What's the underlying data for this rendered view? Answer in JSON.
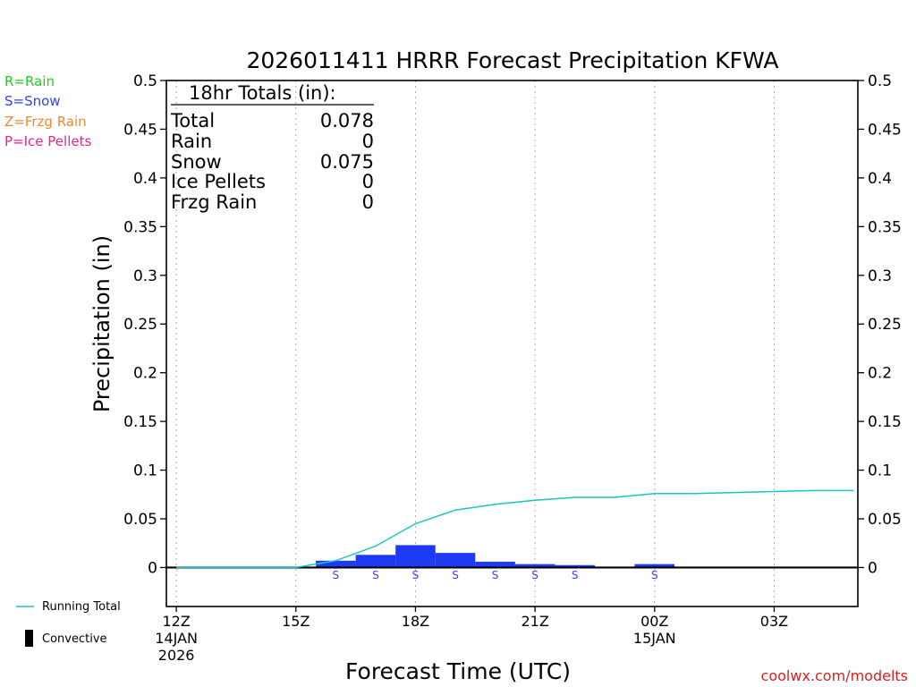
{
  "chart_data": {
    "type": "bar",
    "title": "2026011411 HRRR Forecast Precipitation KFWA",
    "ylabel": "Precipitation (in)",
    "xlabel": "Forecast Time (UTC)",
    "ylim": [
      -0.04,
      0.5
    ],
    "y_ticks": [
      {
        "value": 0,
        "label": "0"
      },
      {
        "value": 0.05,
        "label": "0.05"
      },
      {
        "value": 0.1,
        "label": "0.1"
      },
      {
        "value": 0.15,
        "label": "0.15"
      },
      {
        "value": 0.2,
        "label": "0.2"
      },
      {
        "value": 0.25,
        "label": "0.25"
      },
      {
        "value": 0.3,
        "label": "0.3"
      },
      {
        "value": 0.35,
        "label": "0.35"
      },
      {
        "value": 0.4,
        "label": "0.4"
      },
      {
        "value": 0.45,
        "label": "0.45"
      },
      {
        "value": 0.5,
        "label": "0.5"
      }
    ],
    "xlim_hours": [
      11.75,
      29.1
    ],
    "x_ticks": [
      {
        "hour": 12,
        "lines": [
          "12Z",
          "14JAN",
          "2026"
        ]
      },
      {
        "hour": 15,
        "lines": [
          "15Z"
        ]
      },
      {
        "hour": 18,
        "lines": [
          "18Z"
        ]
      },
      {
        "hour": 21,
        "lines": [
          "21Z"
        ]
      },
      {
        "hour": 24,
        "lines": [
          "00Z",
          "15JAN"
        ]
      },
      {
        "hour": 27,
        "lines": [
          "03Z"
        ]
      }
    ],
    "bars": [
      {
        "hour": 16,
        "value": 0.007,
        "ptype": "S"
      },
      {
        "hour": 17,
        "value": 0.013,
        "ptype": "S"
      },
      {
        "hour": 18,
        "value": 0.023,
        "ptype": "S"
      },
      {
        "hour": 19,
        "value": 0.015,
        "ptype": "S"
      },
      {
        "hour": 20,
        "value": 0.006,
        "ptype": "S"
      },
      {
        "hour": 21,
        "value": 0.0035,
        "ptype": "S"
      },
      {
        "hour": 22,
        "value": 0.0025,
        "ptype": "S"
      },
      {
        "hour": 24,
        "value": 0.0035,
        "ptype": "S"
      }
    ],
    "running_total": {
      "name": "Running Total",
      "points": [
        {
          "hour": 12,
          "value": 0
        },
        {
          "hour": 15,
          "value": 0
        },
        {
          "hour": 16,
          "value": 0.007
        },
        {
          "hour": 17,
          "value": 0.022
        },
        {
          "hour": 18,
          "value": 0.045
        },
        {
          "hour": 19,
          "value": 0.059
        },
        {
          "hour": 20,
          "value": 0.065
        },
        {
          "hour": 21,
          "value": 0.069
        },
        {
          "hour": 22,
          "value": 0.072
        },
        {
          "hour": 23,
          "value": 0.072
        },
        {
          "hour": 24,
          "value": 0.076
        },
        {
          "hour": 25,
          "value": 0.076
        },
        {
          "hour": 26,
          "value": 0.077
        },
        {
          "hour": 27,
          "value": 0.078
        },
        {
          "hour": 28,
          "value": 0.079
        },
        {
          "hour": 29,
          "value": 0.079
        }
      ]
    },
    "totals_box": {
      "heading": "18hr Totals (in):",
      "rows": [
        {
          "label": "Total",
          "value": "0.078"
        },
        {
          "label": "Rain",
          "value": "0"
        },
        {
          "label": "Snow",
          "value": "0.075"
        },
        {
          "label": "Ice Pellets",
          "value": "0"
        },
        {
          "label": "Frzg Rain",
          "value": "0"
        }
      ]
    }
  },
  "ptype_legend": [
    {
      "label": "R=Rain",
      "color": "#22cc22"
    },
    {
      "label": "S=Snow",
      "color": "#3344ee"
    },
    {
      "label": "Z=Frzg Rain",
      "color": "#ee8833"
    },
    {
      "label": "P=Ice Pellets",
      "color": "#ee2288"
    }
  ],
  "legend": {
    "running_total": "Running Total",
    "convective": "Convective"
  },
  "colors": {
    "bar": "#1f3af5",
    "line": "#1ac4c4",
    "snow_text": "#3344ee",
    "credit": "#d42020",
    "grid": "#aaaaaa"
  },
  "credit": "coolwx.com/modelts"
}
